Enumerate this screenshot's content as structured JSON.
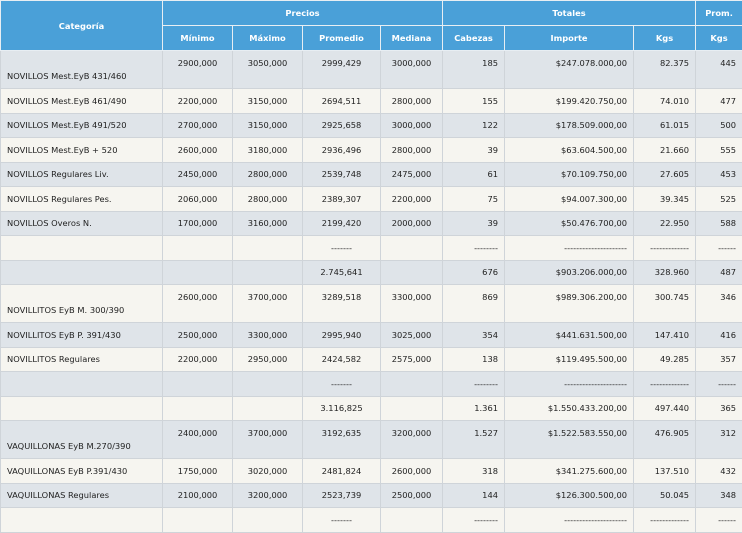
{
  "header": {
    "group": {
      "categoria": "Categoría",
      "precios": "Precios",
      "totales": "Totales",
      "prom": "Prom."
    },
    "columns": [
      "Mínimo",
      "Máximo",
      "Promedio",
      "Mediana",
      "Cabezas",
      "Importe",
      "Kgs",
      "Kgs"
    ]
  },
  "rows": [
    {
      "cat": "NOVILLOS Mest.EyB 431/460",
      "min": "2900,000",
      "max": "3050,000",
      "prom": "2999,429",
      "med": "3000,000",
      "cab": "185",
      "imp": "$247.078.000,00",
      "kgs": "82.375",
      "pkgs": "445"
    },
    {
      "cat": "NOVILLOS Mest.EyB 461/490",
      "min": "2200,000",
      "max": "3150,000",
      "prom": "2694,511",
      "med": "2800,000",
      "cab": "155",
      "imp": "$199.420.750,00",
      "kgs": "74.010",
      "pkgs": "477"
    },
    {
      "cat": "NOVILLOS Mest.EyB 491/520",
      "min": "2700,000",
      "max": "3150,000",
      "prom": "2925,658",
      "med": "3000,000",
      "cab": "122",
      "imp": "$178.509.000,00",
      "kgs": "61.015",
      "pkgs": "500"
    },
    {
      "cat": "NOVILLOS Mest.EyB + 520",
      "min": "2600,000",
      "max": "3180,000",
      "prom": "2936,496",
      "med": "2800,000",
      "cab": "39",
      "imp": "$63.604.500,00",
      "kgs": "21.660",
      "pkgs": "555"
    },
    {
      "cat": "NOVILLOS Regulares Liv.",
      "min": "2450,000",
      "max": "2800,000",
      "prom": "2539,748",
      "med": "2475,000",
      "cab": "61",
      "imp": "$70.109.750,00",
      "kgs": "27.605",
      "pkgs": "453"
    },
    {
      "cat": "NOVILLOS Regulares Pes.",
      "min": "2060,000",
      "max": "2800,000",
      "prom": "2389,307",
      "med": "2200,000",
      "cab": "75",
      "imp": "$94.007.300,00",
      "kgs": "39.345",
      "pkgs": "525"
    },
    {
      "cat": "NOVILLOS Overos N.",
      "min": "1700,000",
      "max": "3160,000",
      "prom": "2199,420",
      "med": "2000,000",
      "cab": "39",
      "imp": "$50.476.700,00",
      "kgs": "22.950",
      "pkgs": "588"
    },
    {
      "cat": "",
      "min": "",
      "max": "",
      "prom": "-------",
      "med": "",
      "cab": "--------",
      "imp": "---------------------",
      "kgs": "-------------",
      "pkgs": "------"
    },
    {
      "cat": "",
      "min": "",
      "max": "",
      "prom": "2.745,641",
      "med": "",
      "cab": "676",
      "imp": "$903.206.000,00",
      "kgs": "328.960",
      "pkgs": "487"
    },
    {
      "cat": "NOVILLITOS EyB M. 300/390",
      "min": "2600,000",
      "max": "3700,000",
      "prom": "3289,518",
      "med": "3300,000",
      "cab": "869",
      "imp": "$989.306.200,00",
      "kgs": "300.745",
      "pkgs": "346"
    },
    {
      "cat": "NOVILLITOS EyB P. 391/430",
      "min": "2500,000",
      "max": "3300,000",
      "prom": "2995,940",
      "med": "3025,000",
      "cab": "354",
      "imp": "$441.631.500,00",
      "kgs": "147.410",
      "pkgs": "416"
    },
    {
      "cat": "NOVILLITOS Regulares",
      "min": "2200,000",
      "max": "2950,000",
      "prom": "2424,582",
      "med": "2575,000",
      "cab": "138",
      "imp": "$119.495.500,00",
      "kgs": "49.285",
      "pkgs": "357"
    },
    {
      "cat": "",
      "min": "",
      "max": "",
      "prom": "-------",
      "med": "",
      "cab": "--------",
      "imp": "---------------------",
      "kgs": "-------------",
      "pkgs": "------"
    },
    {
      "cat": "",
      "min": "",
      "max": "",
      "prom": "3.116,825",
      "med": "",
      "cab": "1.361",
      "imp": "$1.550.433.200,00",
      "kgs": "497.440",
      "pkgs": "365"
    },
    {
      "cat": "VAQUILLONAS EyB M.270/390",
      "min": "2400,000",
      "max": "3700,000",
      "prom": "3192,635",
      "med": "3200,000",
      "cab": "1.527",
      "imp": "$1.522.583.550,00",
      "kgs": "476.905",
      "pkgs": "312"
    },
    {
      "cat": "VAQUILLONAS EyB P.391/430",
      "min": "1750,000",
      "max": "3020,000",
      "prom": "2481,824",
      "med": "2600,000",
      "cab": "318",
      "imp": "$341.275.600,00",
      "kgs": "137.510",
      "pkgs": "432"
    },
    {
      "cat": "VAQUILLONAS Regulares",
      "min": "2100,000",
      "max": "3200,000",
      "prom": "2523,739",
      "med": "2500,000",
      "cab": "144",
      "imp": "$126.300.500,00",
      "kgs": "50.045",
      "pkgs": "348"
    },
    {
      "cat": "",
      "min": "",
      "max": "",
      "prom": "-------",
      "med": "",
      "cab": "--------",
      "imp": "---------------------",
      "kgs": "-------------",
      "pkgs": "------"
    }
  ]
}
